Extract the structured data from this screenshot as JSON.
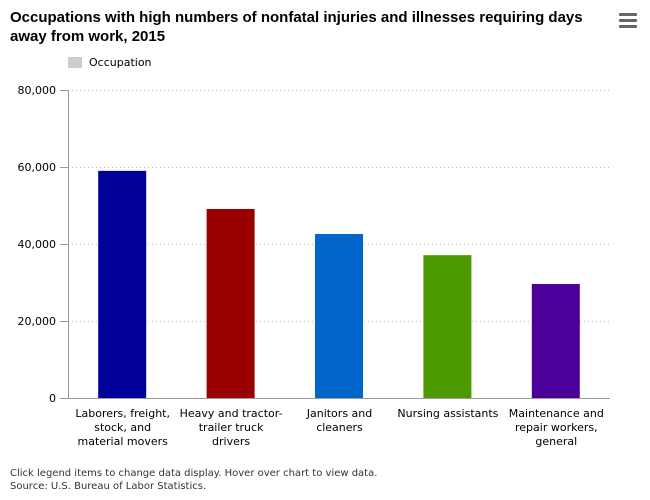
{
  "chart_data": {
    "type": "bar",
    "title": "Occupations with high numbers of nonfatal injuries and illnesses requiring days away from work, 2015",
    "categories": [
      "Laborers, freight, stock, and material movers",
      "Heavy and tractor-trailer truck drivers",
      "Janitors and cleaners",
      "Nursing assistants",
      "Maintenance and repair workers, general"
    ],
    "series": [
      {
        "name": "Occupation",
        "values": [
          59000,
          49100,
          42600,
          37100,
          29600
        ]
      }
    ],
    "colors": [
      "#000099",
      "#990000",
      "#0066cc",
      "#4d9900",
      "#4b0099"
    ],
    "xlabel": "",
    "ylabel": "",
    "ylim": [
      0,
      80000
    ],
    "yticks": [
      "0",
      "20,000",
      "40,000",
      "60,000",
      "80,000"
    ],
    "grid": true,
    "legend": "top-left"
  },
  "menu_icon": "hamburger-menu-icon",
  "footer": {
    "note": "Click legend items to change data display. Hover over chart to view data.",
    "source": "Source: U.S. Bureau of Labor Statistics."
  }
}
